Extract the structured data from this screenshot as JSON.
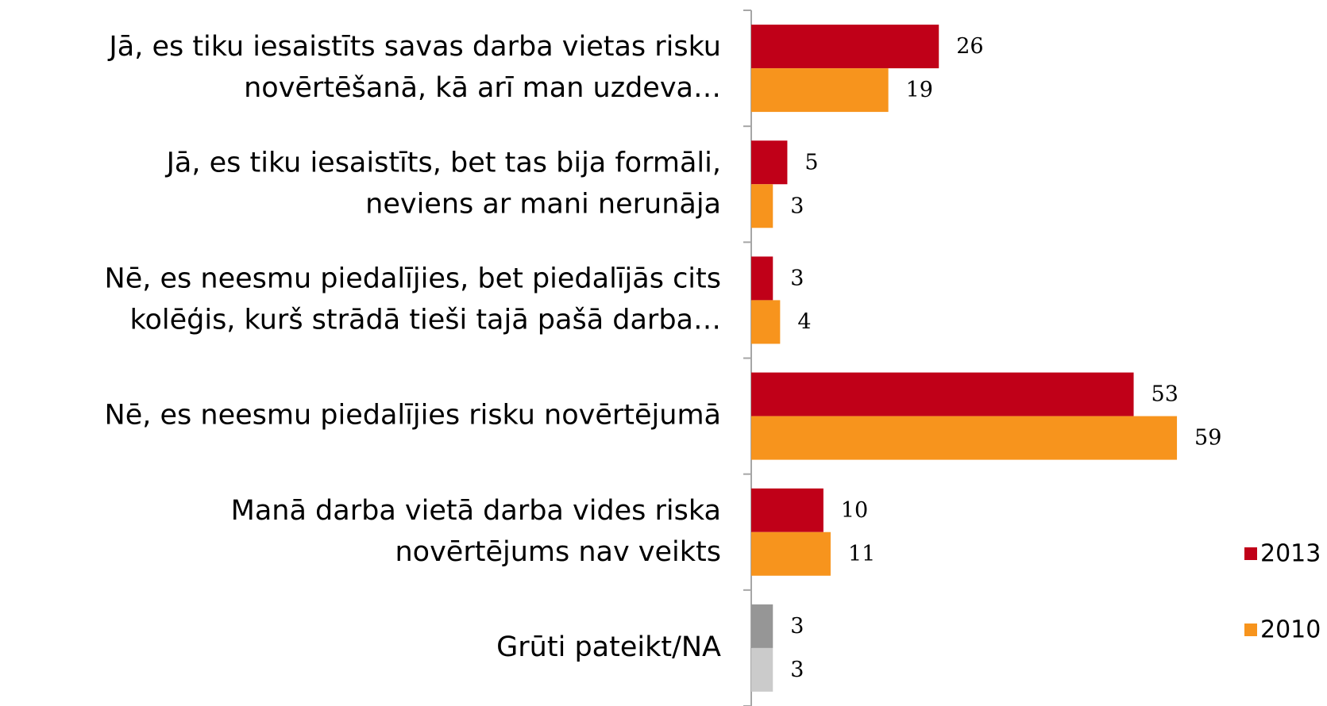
{
  "chart_data": {
    "type": "hbar",
    "categories": [
      [
        "Jā, es tiku iesaistīts savas darba vietas risku",
        "novērtēšanā, kā arī man uzdeva…"
      ],
      [
        "Jā, es tiku iesaistīts, bet tas bija formāli,",
        "neviens ar mani nerunāja"
      ],
      [
        "Nē, es neesmu piedalījies, bet piedalījās cits",
        "kolēģis, kurš strādā tieši tajā pašā darba…"
      ],
      [
        "Nē, es neesmu piedalījies risku novērtējumā"
      ],
      [
        "Manā darba vietā darba vides riska",
        "novērtējums nav veikts"
      ],
      [
        "Grūti pateikt/NA"
      ]
    ],
    "series": [
      {
        "name": "2013",
        "color": "#c00018",
        "colors": [
          "#c00018",
          "#c00018",
          "#c00018",
          "#c00018",
          "#c00018",
          "#969696"
        ],
        "values": [
          26,
          5,
          3,
          53,
          10,
          3
        ]
      },
      {
        "name": "2010",
        "color": "#f7941d",
        "colors": [
          "#f7941d",
          "#f7941d",
          "#f7941d",
          "#f7941d",
          "#f7941d",
          "#cbcbcb"
        ],
        "values": [
          19,
          3,
          4,
          59,
          11,
          3
        ]
      }
    ],
    "xlim": [
      0,
      70
    ],
    "legend": "right"
  }
}
